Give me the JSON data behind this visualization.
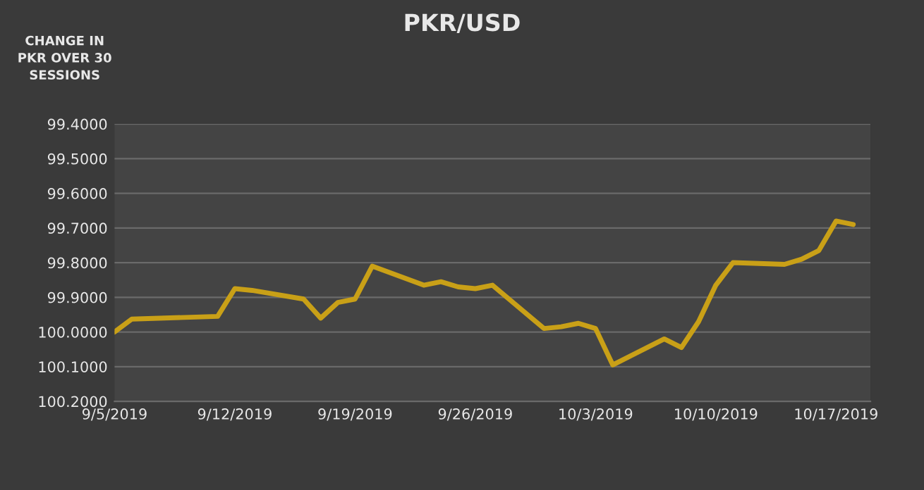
{
  "chart_data": {
    "type": "line",
    "title": "PKR/USD",
    "ylabel": "CHANGE IN\nPKR OVER 30\nSESSIONS",
    "x": [
      "2019-09-05",
      "2019-09-06",
      "2019-09-11",
      "2019-09-12",
      "2019-09-13",
      "2019-09-16",
      "2019-09-17",
      "2019-09-18",
      "2019-09-19",
      "2019-09-20",
      "2019-09-23",
      "2019-09-24",
      "2019-09-25",
      "2019-09-26",
      "2019-09-27",
      "2019-09-30",
      "2019-10-01",
      "2019-10-02",
      "2019-10-03",
      "2019-10-04",
      "2019-10-07",
      "2019-10-08",
      "2019-10-09",
      "2019-10-10",
      "2019-10-11",
      "2019-10-14",
      "2019-10-15",
      "2019-10-16",
      "2019-10-17",
      "2019-10-18"
    ],
    "series": [
      {
        "color": "#c9a017",
        "values": [
          100.0,
          99.963,
          99.955,
          99.875,
          99.88,
          99.905,
          99.96,
          99.915,
          99.905,
          99.81,
          99.865,
          99.855,
          99.87,
          99.875,
          99.865,
          99.99,
          99.985,
          99.975,
          99.99,
          100.095,
          100.02,
          100.045,
          99.97,
          99.865,
          99.8,
          99.805,
          99.79,
          99.765,
          99.68,
          99.69
        ]
      }
    ],
    "xlim": [
      "2019-09-05",
      "2019-10-19"
    ],
    "xticks": [
      {
        "value": "2019-09-05",
        "label": "9/5/2019"
      },
      {
        "value": "2019-09-12",
        "label": "9/12/2019"
      },
      {
        "value": "2019-09-19",
        "label": "9/19/2019"
      },
      {
        "value": "2019-09-26",
        "label": "9/26/2019"
      },
      {
        "value": "2019-10-03",
        "label": "10/3/2019"
      },
      {
        "value": "2019-10-10",
        "label": "10/10/2019"
      },
      {
        "value": "2019-10-17",
        "label": "10/17/2019"
      }
    ],
    "ylim": [
      100.2,
      99.4
    ],
    "yticks": [
      {
        "value": 99.4,
        "label": "99.4000"
      },
      {
        "value": 99.5,
        "label": "99.5000"
      },
      {
        "value": 99.6,
        "label": "99.6000"
      },
      {
        "value": 99.7,
        "label": "99.7000"
      },
      {
        "value": 99.8,
        "label": "99.8000"
      },
      {
        "value": 99.9,
        "label": "99.9000"
      },
      {
        "value": 100.0,
        "label": "100.0000"
      },
      {
        "value": 100.1,
        "label": "100.1000"
      },
      {
        "value": 100.2,
        "label": "100.2000"
      }
    ],
    "grid": "y",
    "legend": false,
    "marker": "none",
    "line_style": "solid"
  }
}
